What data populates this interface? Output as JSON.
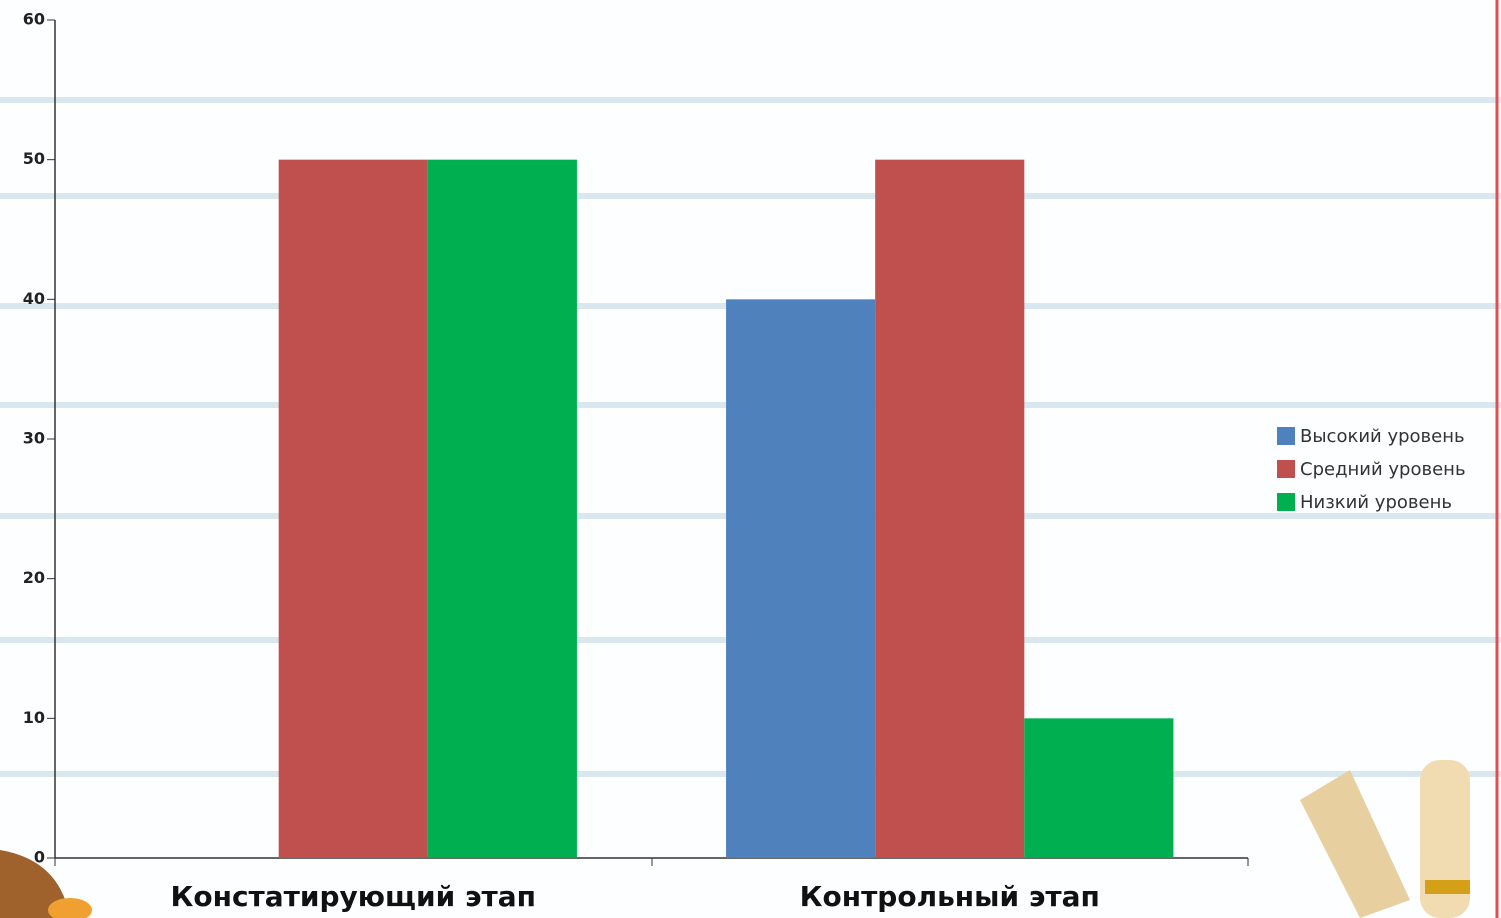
{
  "chart_data": {
    "type": "bar",
    "categories": [
      "Констатирующий этап",
      "Контрольный этап"
    ],
    "series": [
      {
        "name": "Высокий уровень",
        "color": "#4f81bd",
        "values": [
          0,
          40
        ]
      },
      {
        "name": "Средний уровень",
        "color": "#c0504d",
        "values": [
          50,
          50
        ]
      },
      {
        "name": "Низкий уровень",
        "color": "#00b050",
        "values": [
          50,
          10
        ]
      }
    ],
    "ylim": [
      0,
      60
    ],
    "yticks": [
      0,
      10,
      20,
      30,
      40,
      50,
      60
    ],
    "grid": false,
    "legend": "right"
  }
}
